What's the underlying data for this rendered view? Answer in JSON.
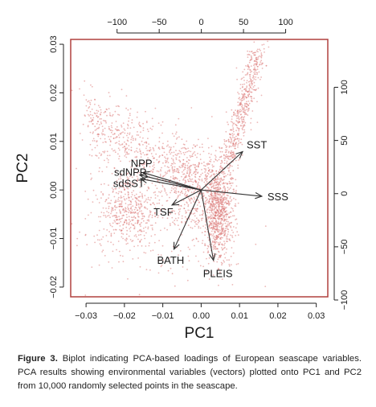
{
  "chart_data": {
    "type": "scatter",
    "xlabel": "PC1",
    "ylabel": "PC2",
    "xlim": [
      -0.034,
      0.033
    ],
    "ylim": [
      -0.022,
      0.031
    ],
    "x_ticks": [
      -0.03,
      -0.02,
      -0.01,
      0.0,
      0.01,
      0.02,
      0.03
    ],
    "x_tick_labels": [
      "−0.03",
      "−0.02",
      "−0.01",
      "0.00",
      "0.01",
      "0.02",
      "0.03"
    ],
    "y_ticks": [
      -0.02,
      -0.01,
      0.0,
      0.01,
      0.02,
      0.03
    ],
    "y_tick_labels": [
      "−0.02",
      "−0.01",
      "0.00",
      "0.01",
      "0.02",
      "0.03"
    ],
    "top_axis": {
      "lim": [
        -155,
        150
      ],
      "ticks": [
        -100,
        -50,
        0,
        50,
        100
      ],
      "tick_labels": [
        "−100",
        "−50",
        "0",
        "50",
        "100"
      ]
    },
    "right_axis": {
      "lim": [
        -97,
        145
      ],
      "ticks": [
        -100,
        -50,
        0,
        50,
        100
      ],
      "tick_labels": [
        "−100",
        "−50",
        "0",
        "50",
        "100"
      ]
    },
    "point_color": "#d9706e",
    "arrow_color": "#333333",
    "frame_color": "#b0413e",
    "grid": false,
    "point_clusters": [
      {
        "region": "right-column",
        "x_range": [
          0.0,
          0.008
        ],
        "y_range": [
          -0.015,
          0.01
        ]
      },
      {
        "region": "upper-right-spike",
        "x_range": [
          0.006,
          0.015
        ],
        "y_range": [
          0.005,
          0.03
        ]
      },
      {
        "region": "left-band",
        "x_range": [
          -0.03,
          -0.005
        ],
        "y_range": [
          -0.01,
          0.016
        ]
      },
      {
        "region": "left-mass",
        "x_range": [
          -0.025,
          -0.012
        ],
        "y_range": [
          -0.012,
          0.005
        ]
      }
    ],
    "vectors": [
      {
        "name": "SST",
        "x": 0.0108,
        "y": 0.0079
      },
      {
        "name": "SSS",
        "x": 0.0158,
        "y": -0.0013
      },
      {
        "name": "NPP",
        "x": -0.0152,
        "y": 0.0036
      },
      {
        "name": "sdNPP",
        "x": -0.016,
        "y": 0.0031
      },
      {
        "name": "sdSST",
        "x": -0.0158,
        "y": 0.0023
      },
      {
        "name": "TSF",
        "x": -0.0076,
        "y": -0.0031
      },
      {
        "name": "BATH",
        "x": -0.0071,
        "y": -0.0122
      },
      {
        "name": "PLEIS",
        "x": 0.0032,
        "y": -0.0145
      }
    ]
  },
  "caption": {
    "label": "Figure 3.",
    "text": " Biplot indicating PCA-based loadings of European seascape variables. PCA results showing environmental variables (vectors) plotted onto PC1 and PC2 from 10,000 randomly selected points in the seascape."
  }
}
